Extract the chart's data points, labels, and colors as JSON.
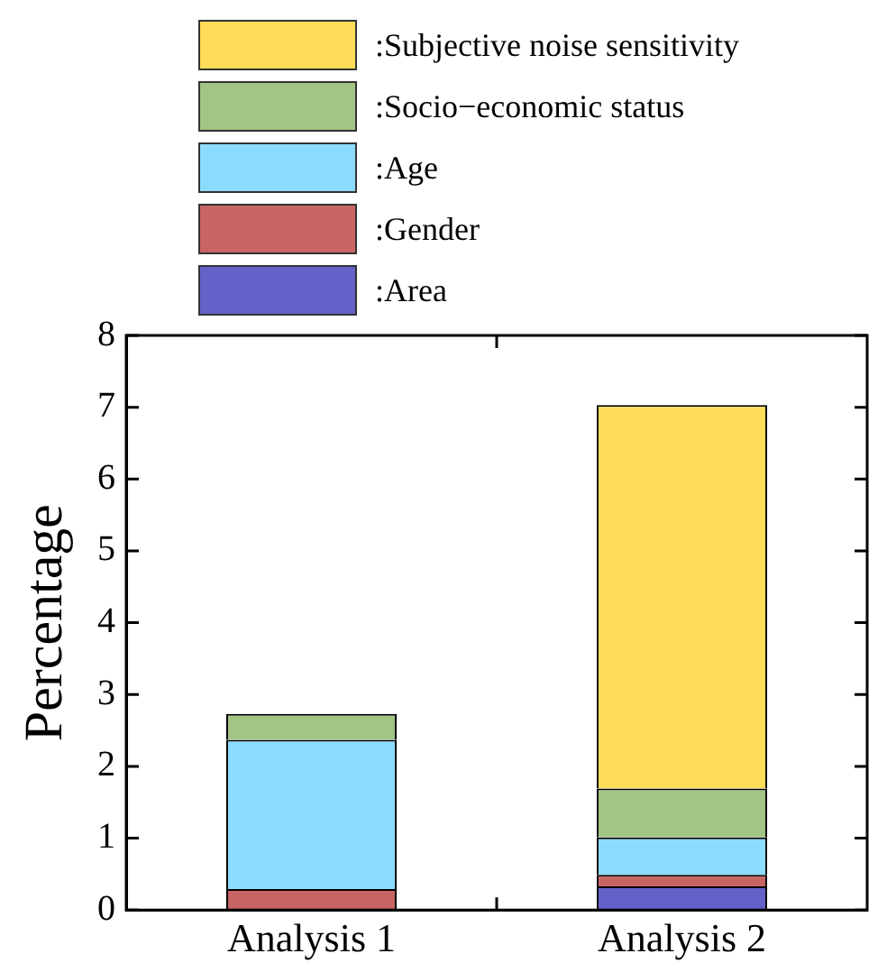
{
  "chart_data": {
    "type": "bar",
    "stacked": true,
    "ylabel": "Percentage",
    "categories": [
      "Analysis 1",
      "Analysis 2"
    ],
    "series": [
      {
        "name": ":Area",
        "color": "#6461c8",
        "values": [
          null,
          0.33
        ]
      },
      {
        "name": ":Gender",
        "color": "#c86464",
        "values": [
          0.29,
          0.16
        ]
      },
      {
        "name": ":Age",
        "color": "#8cdcff",
        "values": [
          2.08,
          0.52
        ]
      },
      {
        "name": ":Socio−economic status",
        "color": "#a2c484",
        "values": [
          0.36,
          0.68
        ]
      },
      {
        "name": ":Subjective noise sensitivity",
        "color": "#fedc5a",
        "values": [
          null,
          5.34
        ]
      }
    ],
    "ylim": [
      0,
      8
    ],
    "yticks": [
      0,
      1,
      2,
      3,
      4,
      5,
      6,
      7,
      8
    ],
    "grid": false,
    "legend": "top"
  }
}
